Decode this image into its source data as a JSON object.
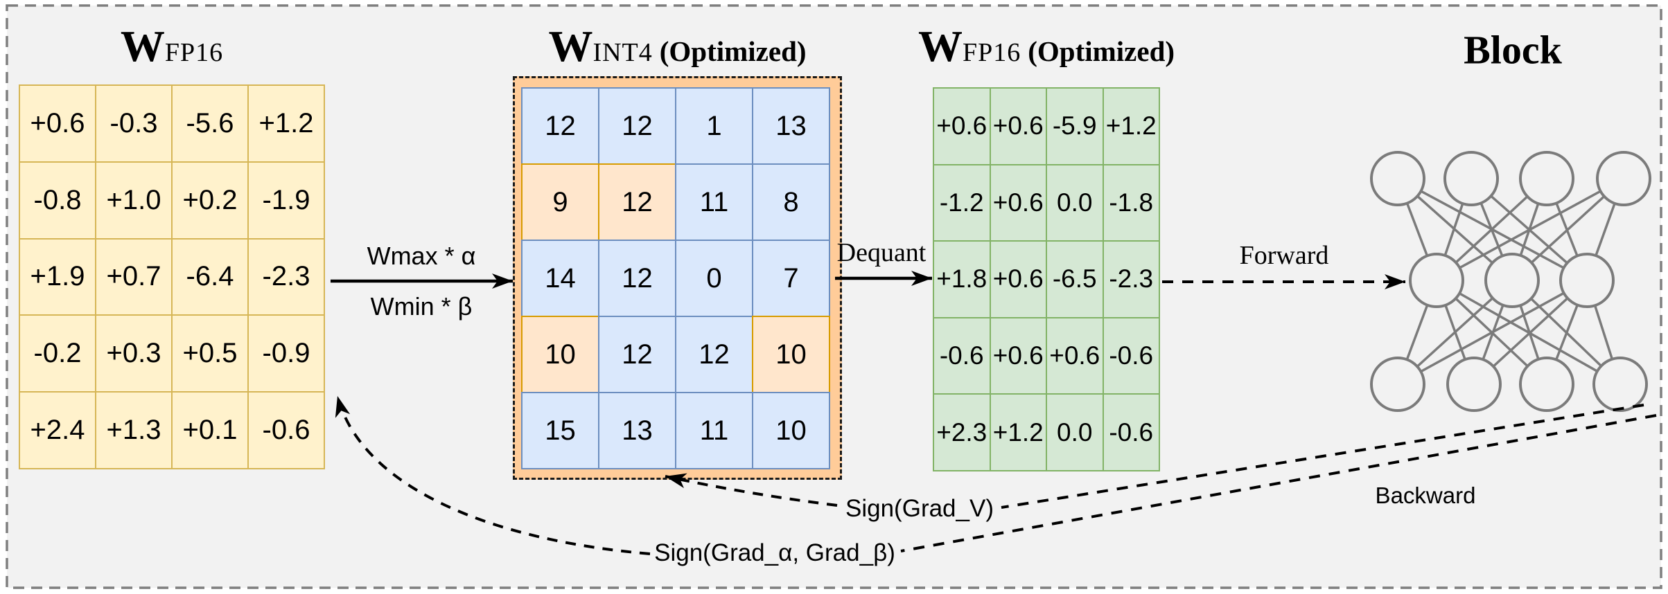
{
  "figure": {
    "matrices": [
      {
        "name": "weights-fp16",
        "title": {
          "main": "W",
          "sub": "FP16",
          "suffix": ""
        },
        "style": "yellow",
        "rows": [
          [
            "+0.6",
            "-0.3",
            "-5.6",
            "+1.2"
          ],
          [
            "-0.8",
            "+1.0",
            "+0.2",
            "-1.9"
          ],
          [
            "+1.9",
            "+0.7",
            "-6.4",
            "-2.3"
          ],
          [
            "-0.2",
            "+0.3",
            "+0.5",
            "-0.9"
          ],
          [
            "+2.4",
            "+1.3",
            "+0.1",
            "-0.6"
          ]
        ]
      },
      {
        "name": "weights-int4-optimized",
        "title": {
          "main": "W",
          "sub": "INT4",
          "suffix": "(Optimized)"
        },
        "style": "blue",
        "rows": [
          [
            "12",
            "12",
            "1",
            "13"
          ],
          [
            "9",
            "12",
            "11",
            "8"
          ],
          [
            "14",
            "12",
            "0",
            "7"
          ],
          [
            "10",
            "12",
            "12",
            "10"
          ],
          [
            "15",
            "13",
            "11",
            "10"
          ]
        ],
        "highlighted_cells": [
          [
            1,
            0
          ],
          [
            1,
            1
          ],
          [
            3,
            0
          ],
          [
            3,
            3
          ]
        ]
      },
      {
        "name": "weights-fp16-optimized",
        "title": {
          "main": "W",
          "sub": "FP16",
          "suffix": "(Optimized)"
        },
        "style": "green",
        "rows": [
          [
            "+0.6",
            "+0.6",
            "-5.9",
            "+1.2"
          ],
          [
            "-1.2",
            "+0.6",
            "0.0",
            "-1.8"
          ],
          [
            "+1.8",
            "+0.6",
            "-6.5",
            "-2.3"
          ],
          [
            "-0.6",
            "+0.6",
            "+0.6",
            "-0.6"
          ],
          [
            "+2.3",
            "+1.2",
            "0.0",
            "-0.6"
          ]
        ]
      }
    ],
    "labels": {
      "quant_top": "Wmax * α",
      "quant_bottom": "Wmin * β",
      "dequant": "Dequant",
      "forward": "Forward",
      "backward": "Backward",
      "grad_v": "Sign(Grad_V)",
      "grad_ab": "Sign(Grad_α, Grad_β)"
    },
    "block": {
      "title": "Block",
      "layer_sizes": [
        4,
        3,
        4
      ]
    },
    "colors": {
      "background": "#f2f2f2",
      "yellow_fill": "#fff2cc",
      "yellow_border": "#d6b656",
      "blue_fill": "#dae8fc",
      "blue_border": "#6c8ebf",
      "orange_fill": "#ffe6cc",
      "orange_border": "#d79b00",
      "container_fill": "#ffcc99",
      "green_fill": "#d5e8d4",
      "green_border": "#82b366",
      "node_stroke": "#7b7b7b",
      "arrow_color": "#000000",
      "outer_border": "#7f7f7f"
    }
  }
}
